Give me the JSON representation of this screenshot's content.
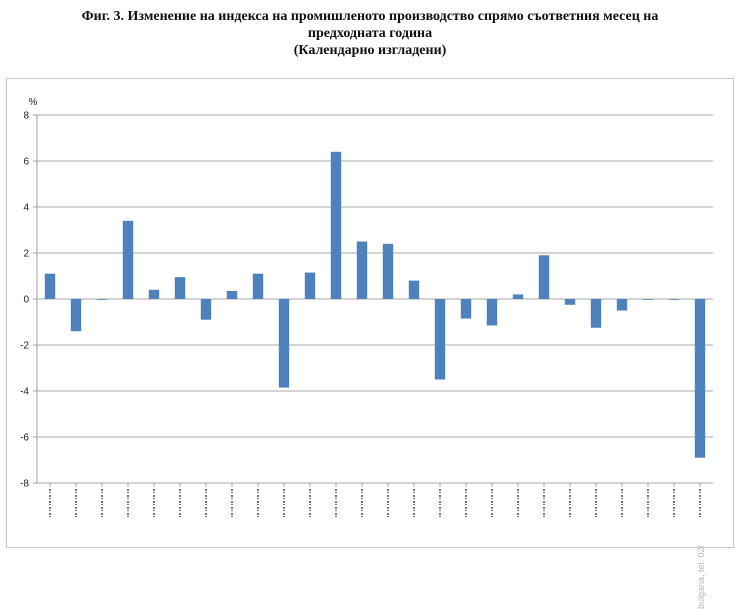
{
  "title": {
    "line1": "Фиг. 3. Изменение на индекса на промишленото производство спрямо съответния месец на",
    "line2": "предходната година",
    "line3": "(Календарно изгладени)"
  },
  "watermark": "bulgaria, tel. 02/",
  "chart_data": {
    "type": "bar",
    "title": "Фиг. 3. Изменение на индекса на промишленото производство спрямо съответния месец на предходната година (Календарно изгладени)",
    "ylabel": "%",
    "xlabel": "",
    "ylim": [
      -8,
      8
    ],
    "yticks": [
      8,
      6,
      4,
      2,
      0,
      -2,
      -4,
      -6,
      -8
    ],
    "grid": true,
    "legend": "none",
    "bar_color": "#4f81bd",
    "categories": [
      "",
      "",
      "",
      "",
      "",
      "",
      "",
      "",
      "",
      "",
      "",
      "",
      "",
      "",
      "",
      "",
      "",
      "",
      "",
      "",
      "",
      "",
      "",
      "",
      "",
      ""
    ],
    "values": [
      1.1,
      -1.4,
      0.0,
      3.4,
      0.4,
      0.95,
      -0.9,
      0.35,
      1.1,
      -3.85,
      1.15,
      6.4,
      2.5,
      2.4,
      0.8,
      -3.5,
      -0.85,
      -1.15,
      0.2,
      1.9,
      -0.25,
      -1.25,
      -0.5,
      0.0,
      0.0,
      -6.9
    ]
  }
}
